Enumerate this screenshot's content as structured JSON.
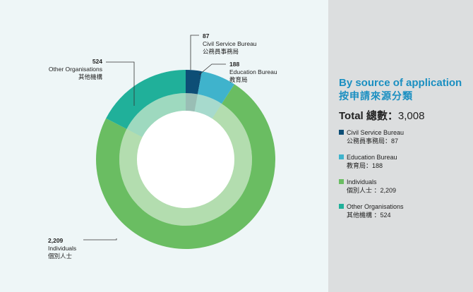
{
  "chart_data": {
    "type": "pie",
    "title": "By source of application",
    "title_zh": "按申請來源分類",
    "total": {
      "label": "Total 總數：",
      "value": "3,008"
    },
    "slices": [
      {
        "name_en": "Civil Service Bureau",
        "name_zh": "公務員事務局",
        "value": 87,
        "value_text": "87",
        "legend_text": "公務員事務局：87",
        "color": "#0d4e76"
      },
      {
        "name_en": "Education Bureau",
        "name_zh": "教育局",
        "value": 188,
        "value_text": "188",
        "legend_text": "教育局：188",
        "color": "#3fb3cc"
      },
      {
        "name_en": "Individuals",
        "name_zh": "個別人士",
        "value": 2209,
        "value_text": "2,209",
        "legend_text": "個別人士 ：2,209",
        "color": "#6abd62"
      },
      {
        "name_en": "Other Organisations",
        "name_zh": "其他機構",
        "value": 524,
        "value_text": "524",
        "legend_text": "其他機構 ：524",
        "color": "#20b09a"
      }
    ]
  },
  "colors": {
    "chart_background": "#eef6f7",
    "panel_background": "#dcdedf",
    "title_accent": "#1a8fc1"
  }
}
